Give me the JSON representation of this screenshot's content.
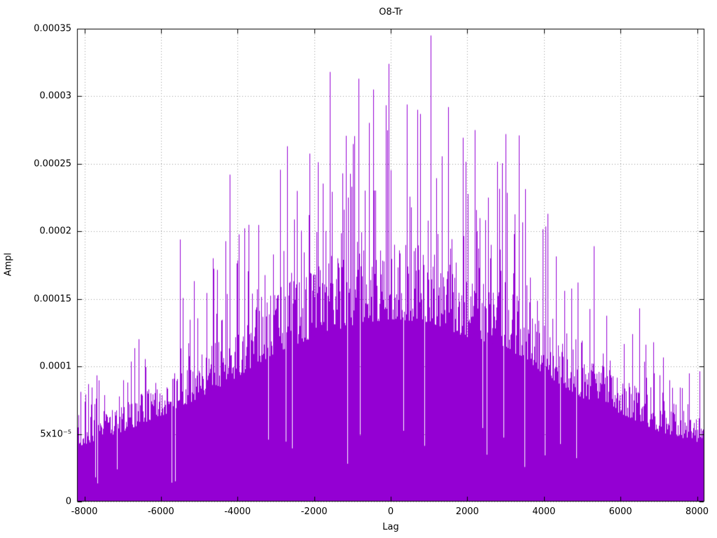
{
  "chart_data": {
    "type": "line",
    "style": "impulses",
    "title": "O8-Tr",
    "xlabel": "Lag",
    "ylabel": "Ampl",
    "xlim": [
      -8192,
      8192
    ],
    "ylim": [
      0,
      0.00035
    ],
    "grid": true,
    "legend": "none",
    "background": "#ffffff",
    "border_color": "#000000",
    "grid_color": "#9a9a9a",
    "series_color": "#9400d3",
    "xticks": {
      "values": [
        -8000,
        -6000,
        -4000,
        -2000,
        0,
        2000,
        4000,
        6000,
        8000
      ],
      "labels": [
        "-8000",
        "-6000",
        "-4000",
        "-2000",
        "0",
        "2000",
        "4000",
        "6000",
        "8000"
      ]
    },
    "yticks": {
      "values": [
        0,
        5e-05,
        0.0001,
        0.00015,
        0.0002,
        0.00025,
        0.0003,
        0.00035
      ],
      "labels": [
        "0",
        "5x10⁻⁵",
        "0.0001",
        "0.00015",
        "0.0002",
        "0.00025",
        "0.0003",
        "0.00035"
      ]
    },
    "series": [
      {
        "name": "O8-Tr",
        "description": "Dense noisy impulse (correlogram-like) signal: solid purple mass from 0 up to ~45% of the local peak envelope, with sparse taller spikes reaching the envelope; amplitude envelope peaks near lag 0 and decays toward ±8192.",
        "envelope": {
          "lags": [
            -8192,
            -7000,
            -6000,
            -5000,
            -4000,
            -3000,
            -2000,
            -1000,
            0,
            1000,
            2000,
            3000,
            4000,
            5000,
            6000,
            7000,
            8192
          ],
          "peaks": [
            9e-05,
            0.000115,
            0.00014,
            0.00017,
            0.000205,
            0.000245,
            0.00027,
            0.00029,
            0.0003,
            0.000295,
            0.00027,
            0.000255,
            0.00021,
            0.00017,
            0.000145,
            0.000115,
            9.5e-05
          ]
        },
        "dense_mass_fraction_of_peak": 0.45,
        "max_point": {
          "lag": 1050,
          "ampl": 0.000345
        },
        "notable_peaks": [
          {
            "lag": -5500,
            "ampl": 0.000194
          },
          {
            "lag": -4200,
            "ampl": 0.000242
          },
          {
            "lag": -2700,
            "ampl": 0.000263
          },
          {
            "lag": -1600,
            "ampl": 0.000318
          },
          {
            "lag": -850,
            "ampl": 0.000313
          },
          {
            "lag": -450,
            "ampl": 0.000305
          },
          {
            "lag": -50,
            "ampl": 0.000324
          },
          {
            "lag": 700,
            "ampl": 0.00029
          },
          {
            "lag": 1050,
            "ampl": 0.000345
          },
          {
            "lag": 1500,
            "ampl": 0.000292
          },
          {
            "lag": 2200,
            "ampl": 0.000275
          },
          {
            "lag": 3000,
            "ampl": 0.000272
          },
          {
            "lag": 3350,
            "ampl": 0.000271
          },
          {
            "lag": 4100,
            "ampl": 0.000213
          },
          {
            "lag": 5300,
            "ampl": 0.000189
          },
          {
            "lag": 6500,
            "ampl": 0.000143
          }
        ]
      }
    ]
  }
}
